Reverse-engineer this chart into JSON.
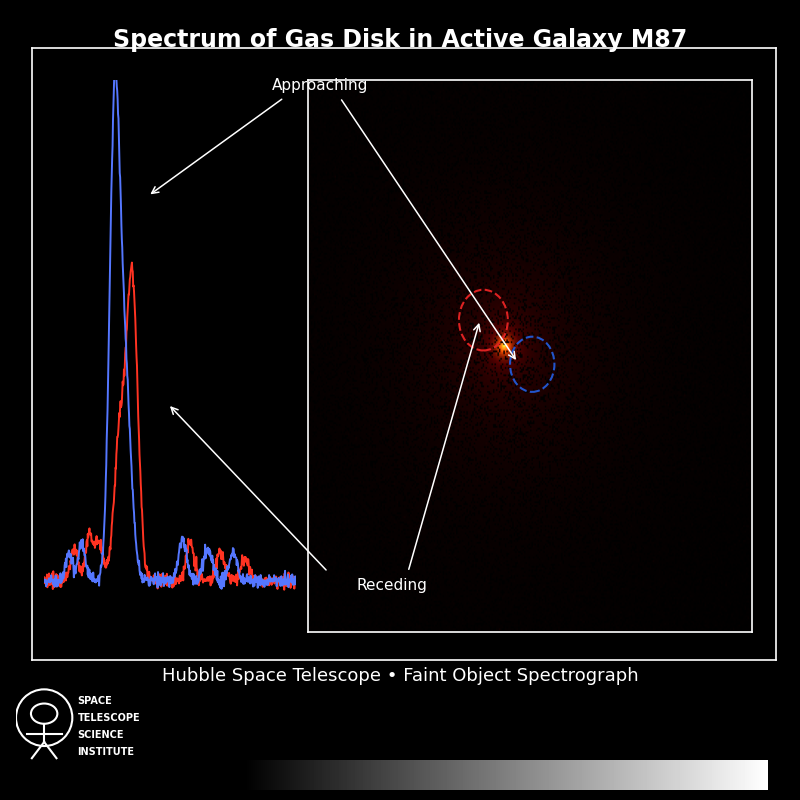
{
  "title": "Spectrum of Gas Disk in Active Galaxy M87",
  "subtitle": "Hubble Space Telescope • Faint Object Spectrograph",
  "bg_color": "#000000",
  "title_color": "#ffffff",
  "subtitle_color": "#ffffff",
  "main_box_color": "#ffffff",
  "approaching_label": "Approaching",
  "receding_label": "Receding",
  "blue_spectrum_color": "#5577ff",
  "red_spectrum_color": "#ff3322",
  "annotation_color": "#ffffff",
  "red_circle_color": "#dd2222",
  "blue_circle_color": "#2255cc",
  "fig_width": 8.0,
  "fig_height": 8.0,
  "title_fontsize": 17,
  "subtitle_fontsize": 13,
  "annotation_fontsize": 11
}
